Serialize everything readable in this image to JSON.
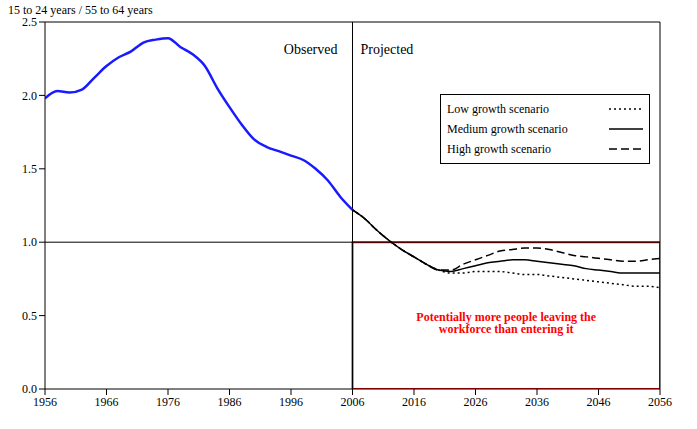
{
  "chart_data": {
    "type": "line",
    "y_label": "15 to 24 years / 55 to 64 years",
    "annotations": [
      "Observed",
      "Projected"
    ],
    "x": [
      1956,
      1958,
      1960,
      1962,
      1964,
      1966,
      1968,
      1970,
      1972,
      1974,
      1976,
      1978,
      1980,
      1982,
      1984,
      1986,
      1988,
      1990,
      1992,
      1994,
      1996,
      1998,
      2000,
      2002,
      2004,
      2006,
      2008,
      2010,
      2012,
      2014,
      2016,
      2018,
      2020,
      2022,
      2024,
      2026,
      2028,
      2030,
      2032,
      2034,
      2036,
      2038,
      2040,
      2042,
      2044,
      2046,
      2048,
      2050,
      2052,
      2054,
      2056
    ],
    "series": [
      {
        "color": "#1a1aff",
        "line_style": "solid",
        "values": [
          1.98,
          2.03,
          2.02,
          2.04,
          2.12,
          2.2,
          2.26,
          2.3,
          2.36,
          2.38,
          2.39,
          2.33,
          2.28,
          2.2,
          2.05,
          1.92,
          1.8,
          1.7,
          1.65,
          1.62,
          1.59,
          1.56,
          1.5,
          1.42,
          1.31,
          1.22,
          null,
          null,
          null,
          null,
          null,
          null,
          null,
          null,
          null,
          null,
          null,
          null,
          null,
          null,
          null,
          null,
          null,
          null,
          null,
          null,
          null,
          null,
          null,
          null,
          null
        ]
      },
      {
        "name": "Low growth scenario",
        "color": "#000000",
        "line_style": "dotted",
        "values": [
          null,
          null,
          null,
          null,
          null,
          null,
          null,
          null,
          null,
          null,
          null,
          null,
          null,
          null,
          null,
          null,
          null,
          null,
          null,
          null,
          null,
          null,
          null,
          null,
          null,
          1.22,
          1.16,
          1.08,
          1.01,
          0.95,
          0.9,
          0.85,
          0.81,
          0.79,
          0.79,
          0.8,
          0.8,
          0.8,
          0.79,
          0.78,
          0.78,
          0.77,
          0.76,
          0.75,
          0.74,
          0.73,
          0.72,
          0.71,
          0.7,
          0.7,
          0.69
        ]
      },
      {
        "name": "Medium growth scenario",
        "color": "#000000",
        "line_style": "solid",
        "values": [
          null,
          null,
          null,
          null,
          null,
          null,
          null,
          null,
          null,
          null,
          null,
          null,
          null,
          null,
          null,
          null,
          null,
          null,
          null,
          null,
          null,
          null,
          null,
          null,
          null,
          1.22,
          1.16,
          1.08,
          1.01,
          0.95,
          0.9,
          0.85,
          0.81,
          0.8,
          0.82,
          0.84,
          0.86,
          0.87,
          0.88,
          0.88,
          0.87,
          0.86,
          0.85,
          0.84,
          0.82,
          0.81,
          0.8,
          0.79,
          0.79,
          0.79,
          0.79
        ]
      },
      {
        "name": "High growth scenario",
        "color": "#000000",
        "line_style": "dashed",
        "values": [
          null,
          null,
          null,
          null,
          null,
          null,
          null,
          null,
          null,
          null,
          null,
          null,
          null,
          null,
          null,
          null,
          null,
          null,
          null,
          null,
          null,
          null,
          null,
          null,
          null,
          1.22,
          1.16,
          1.08,
          1.01,
          0.95,
          0.9,
          0.85,
          0.81,
          0.81,
          0.85,
          0.88,
          0.91,
          0.94,
          0.95,
          0.96,
          0.96,
          0.95,
          0.93,
          0.91,
          0.9,
          0.89,
          0.88,
          0.87,
          0.87,
          0.88,
          0.89
        ]
      }
    ],
    "xlim": [
      1956,
      2056
    ],
    "xticks": [
      1956,
      1966,
      1976,
      1986,
      1996,
      2006,
      2016,
      2026,
      2036,
      2046,
      2056
    ],
    "ylim": [
      0,
      2.5
    ],
    "yticks": [
      {
        "value": 0,
        "label": "0.0"
      },
      0.5,
      {
        "value": 1,
        "label": "1.0"
      },
      1.5,
      {
        "value": 2,
        "label": "2.0"
      },
      2.5
    ],
    "vlines": [
      2006
    ],
    "hlines": [
      1
    ],
    "highlight": {
      "x": [
        2006,
        2056
      ],
      "y": [
        0,
        1
      ],
      "color": "#ff0000",
      "label": "Potentially more people leaving the workforce than entering it"
    },
    "grid": false,
    "legend": "upper right"
  }
}
